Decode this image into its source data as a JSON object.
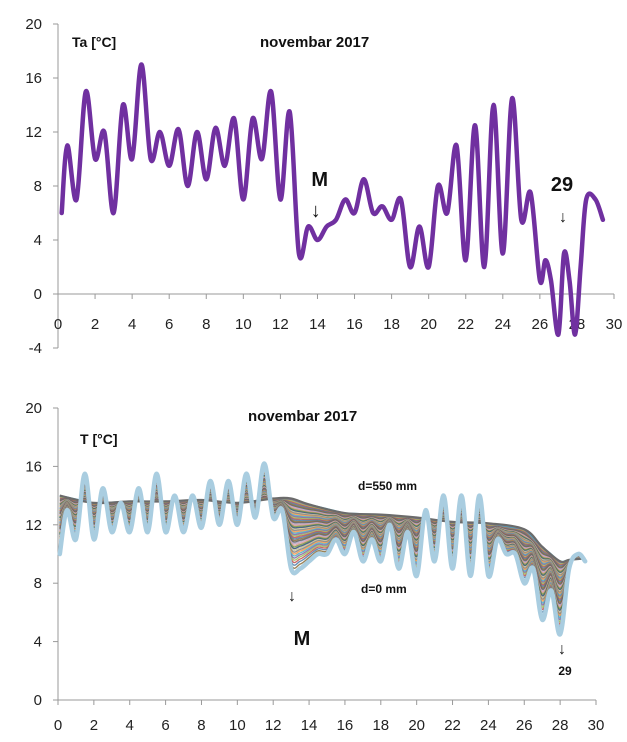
{
  "chart_data": [
    {
      "type": "line",
      "title": "novembar 2017",
      "ylabel": "Ta [°C]",
      "xlabel": "",
      "xlim": [
        0,
        30
      ],
      "ylim": [
        -4,
        20
      ],
      "x_ticks": [
        "0",
        "2",
        "4",
        "6",
        "8",
        "10",
        "12",
        "14",
        "16",
        "18",
        "20",
        "22",
        "24",
        "26",
        "28",
        "30"
      ],
      "y_ticks": [
        "-4",
        "0",
        "4",
        "8",
        "12",
        "16",
        "20"
      ],
      "series_color": "#7030a0",
      "annotations": [
        {
          "text": "M",
          "x": 13.8,
          "y": 6.5
        },
        {
          "text": "29",
          "x": 27.3,
          "y": 6.5
        }
      ],
      "x": [
        0.2,
        0.5,
        1.0,
        1.5,
        2.0,
        2.5,
        3.0,
        3.5,
        4.0,
        4.5,
        5.0,
        5.5,
        6.0,
        6.5,
        7.0,
        7.5,
        8.0,
        8.5,
        9.0,
        9.5,
        10.0,
        10.5,
        11.0,
        11.5,
        12.0,
        12.5,
        13.0,
        13.5,
        14.0,
        14.5,
        15.0,
        15.5,
        16.0,
        16.5,
        17.0,
        17.5,
        18.0,
        18.5,
        19.0,
        19.5,
        20.0,
        20.5,
        21.0,
        21.5,
        22.0,
        22.5,
        23.0,
        23.5,
        24.0,
        24.5,
        25.0,
        25.5,
        26.0,
        26.3,
        26.6,
        27.0,
        27.3,
        27.6,
        27.9,
        28.2,
        28.5,
        29.0,
        29.4
      ],
      "y": [
        6,
        11,
        7,
        15,
        10,
        12,
        6,
        14,
        10,
        17,
        10,
        12,
        9.5,
        12.2,
        8,
        12,
        8.5,
        12.3,
        9.5,
        13,
        7,
        13,
        10,
        15,
        7,
        13.5,
        3,
        5,
        4,
        5,
        5.5,
        7,
        6,
        8.5,
        6,
        6.5,
        5.5,
        7,
        2,
        5,
        2,
        8,
        6,
        11,
        2.5,
        12.5,
        2,
        14,
        3,
        14.5,
        5.5,
        7.5,
        1,
        2.5,
        1,
        -3,
        3,
        1,
        -3,
        2,
        7,
        7,
        5.5
      ]
    },
    {
      "type": "area",
      "title": "novembar 2017",
      "ylabel": "T  [°C]",
      "xlabel": "",
      "xlim": [
        0,
        30
      ],
      "ylim": [
        0,
        20
      ],
      "x_ticks": [
        "0",
        "2",
        "4",
        "6",
        "8",
        "10",
        "12",
        "14",
        "16",
        "18",
        "20",
        "22",
        "24",
        "26",
        "28",
        "30"
      ],
      "y_ticks": [
        "0",
        "4",
        "8",
        "12",
        "16",
        "20"
      ],
      "annotations": [
        {
          "text": "d=550 mm",
          "x": 17.6,
          "y": 14
        },
        {
          "text": "d=0 mm",
          "x": 17.6,
          "y": 7.5
        },
        {
          "text": "M",
          "x": 13.5,
          "y": 4
        },
        {
          "text": "29",
          "x": 28.3,
          "y": 1.8
        }
      ],
      "series": [
        {
          "name": "d=0 mm",
          "x": [
            0.1,
            0.5,
            1.0,
            1.5,
            2.0,
            2.5,
            3.0,
            3.5,
            4.0,
            4.5,
            5.0,
            5.5,
            6.0,
            6.5,
            7.0,
            7.5,
            8.0,
            8.5,
            9.0,
            9.5,
            10.0,
            10.5,
            11.0,
            11.5,
            12.0,
            12.5,
            13.0,
            13.5,
            14.0,
            14.5,
            15.0,
            15.5,
            16.0,
            16.5,
            17.0,
            17.5,
            18.0,
            18.5,
            19.0,
            19.5,
            20.0,
            20.5,
            21.0,
            21.5,
            22.0,
            22.5,
            23.0,
            23.5,
            24.0,
            24.5,
            25.0,
            25.5,
            26.0,
            26.5,
            27.0,
            27.5,
            28.0,
            28.5,
            29.0,
            29.4
          ],
          "y": [
            10,
            13,
            11,
            15.5,
            11,
            14.5,
            11.5,
            13.5,
            11.5,
            14.5,
            11.5,
            15.5,
            11.5,
            14,
            11.5,
            14,
            11.8,
            15,
            12,
            15,
            12,
            15.5,
            12.5,
            16.2,
            12.5,
            13,
            9,
            9,
            9.5,
            10,
            10,
            11,
            10,
            11.5,
            9.5,
            11,
            9.5,
            12,
            9,
            11.5,
            8.5,
            13,
            9.5,
            14,
            9,
            14,
            8.5,
            14,
            8.5,
            11,
            10,
            10,
            8,
            9,
            5.5,
            7.5,
            4.5,
            9,
            10,
            9.5
          ]
        },
        {
          "name": "d=550 mm",
          "x": [
            0.1,
            2.0,
            4.0,
            6.0,
            8.0,
            10.0,
            12.0,
            13.0,
            14.0,
            16.0,
            18.0,
            20.0,
            22.0,
            24.0,
            26.0,
            27.0,
            28.0,
            28.5,
            29.4
          ],
          "y": [
            14,
            13.5,
            13.6,
            13.6,
            13.7,
            13.5,
            13.8,
            13.8,
            13.4,
            12.8,
            12.7,
            12.5,
            12.2,
            12.1,
            11.7,
            10.5,
            9.5,
            9.6,
            9.7
          ]
        }
      ]
    }
  ]
}
